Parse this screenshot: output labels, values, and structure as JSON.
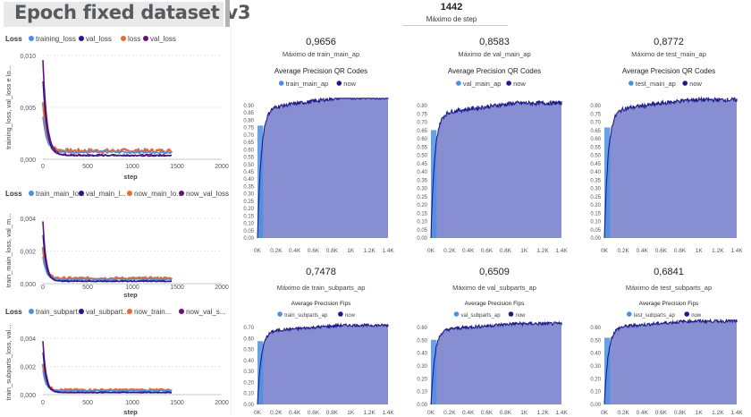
{
  "page": {
    "title": "Epoch fixed dataset v3",
    "top_kpi": {
      "value": "1442",
      "label": "Máximo de step"
    }
  },
  "colors": {
    "light_blue": "#4a90e2",
    "dark_navy": "#1f1a8a",
    "orange": "#e66c37",
    "purple": "#6b0f78",
    "area_fill": "#8188d0"
  },
  "left_charts": [
    {
      "legend_title": "Loss",
      "legend": [
        "training_loss",
        "val_loss",
        "loss",
        "val_loss"
      ],
      "ylabel": "training_loss, val_loss e lo...",
      "xlabel": "step",
      "y_ticks": [
        "0,010",
        "0,005",
        "0,000"
      ],
      "x_ticks": [
        "0",
        "500",
        "1000",
        "1500",
        "2000"
      ]
    },
    {
      "legend_title": "Loss",
      "legend": [
        "train_main_lo...",
        "val_main_l...",
        "now_main_lo...",
        "now_val_loss"
      ],
      "ylabel": "train_main_loss, val_m...",
      "xlabel": "step",
      "y_ticks": [
        "0,004",
        "0,002",
        "0,000"
      ],
      "x_ticks": [
        "0",
        "500",
        "1000",
        "1500",
        "2000"
      ]
    },
    {
      "legend_title": "Loss",
      "legend": [
        "train_subpart...",
        "val_subpart...",
        "now_train...",
        "now_val_s..."
      ],
      "ylabel": "train_subparts_loss, val...",
      "xlabel": "step",
      "y_ticks": [
        "0,004",
        "0,002",
        "0,000"
      ],
      "x_ticks": [
        "0",
        "500",
        "1000",
        "1500",
        "2000"
      ]
    }
  ],
  "ap_panels": [
    {
      "kpi": "0,9656",
      "kpi_label": "Máximo de train_main_ap",
      "chart_title": "Average Precision QR Codes",
      "legend": [
        "train_main_ap",
        "now"
      ],
      "y_ticks": [
        "0.90",
        "0.85",
        "0.80",
        "0.75",
        "0.70",
        "0.65",
        "0.60",
        "0.55",
        "0.50",
        "0.45",
        "0.40",
        "0.35",
        "0.30",
        "0.25",
        "0.20",
        "0.15",
        "0.10",
        "0.05",
        "0.00"
      ],
      "x_ticks": [
        "0K",
        "0.2K",
        "0.4K",
        "0.6K",
        "0.8K",
        "1K",
        "1.2K",
        "1.4K"
      ]
    },
    {
      "kpi": "0,8583",
      "kpi_label": "Máximo de val_main_ap",
      "chart_title": "Average Precision QR Codes",
      "legend": [
        "val_main_ap",
        "now"
      ],
      "y_ticks": [
        "0.80",
        "0.75",
        "0.70",
        "0.65",
        "0.60",
        "0.55",
        "0.50",
        "0.45",
        "0.40",
        "0.35",
        "0.30",
        "0.25",
        "0.20",
        "0.15",
        "0.10",
        "0.05",
        "0.00"
      ],
      "x_ticks": [
        "0K",
        "0.2K",
        "0.4K",
        "0.6K",
        "0.8K",
        "1K",
        "1.2K",
        "1.4K"
      ]
    },
    {
      "kpi": "0,8772",
      "kpi_label": "Máximo de test_main_ap",
      "chart_title": "Average Precision QR Codes",
      "legend": [
        "test_main_ap",
        "now"
      ],
      "y_ticks": [
        "0.80",
        "0.75",
        "0.70",
        "0.65",
        "0.60",
        "0.55",
        "0.50",
        "0.45",
        "0.40",
        "0.35",
        "0.30",
        "0.25",
        "0.20",
        "0.15",
        "0.10",
        "0.05",
        "0.00"
      ],
      "x_ticks": [
        "0K",
        "0.2K",
        "0.4K",
        "0.6K",
        "0.8K",
        "1K",
        "1.2K",
        "1.4K"
      ]
    },
    {
      "kpi": "0,7478",
      "kpi_label": "Máximo de train_subparts_ap",
      "chart_title": "Average Precision Fips",
      "legend": [
        "train_subparts_ap",
        "now"
      ],
      "y_ticks": [
        "0.70",
        "0.60",
        "0.50",
        "0.40",
        "0.30",
        "0.20",
        "0.10",
        "0.00"
      ],
      "x_ticks": [
        "0K",
        "0.2K",
        "0.4K",
        "0.6K",
        "0.8K",
        "1K",
        "1.2K",
        "1.4K"
      ]
    },
    {
      "kpi": "0,6509",
      "kpi_label": "Máximo de val_subparts_ap",
      "chart_title": "Average Precision Fips",
      "legend": [
        "val_subparts_ap",
        "now"
      ],
      "y_ticks": [
        "0.60",
        "0.50",
        "0.40",
        "0.30",
        "0.20",
        "0.10",
        "0.00"
      ],
      "x_ticks": [
        "0K",
        "0.2K",
        "0.4K",
        "0.6K",
        "0.8K",
        "1K",
        "1.2K",
        "1.4K"
      ]
    },
    {
      "kpi": "0,6841",
      "kpi_label": "Máximo de test_subparts_ap",
      "chart_title": "Average Precision Fips",
      "legend": [
        "test_subparts_ap",
        "now"
      ],
      "y_ticks": [
        "0.60",
        "0.50",
        "0.40",
        "0.30",
        "0.20",
        "0.10",
        "0.00"
      ],
      "x_ticks": [
        "0K",
        "0.2K",
        "0.4K",
        "0.6K",
        "0.8K",
        "1K",
        "1.2K",
        "1.4K"
      ]
    }
  ]
}
